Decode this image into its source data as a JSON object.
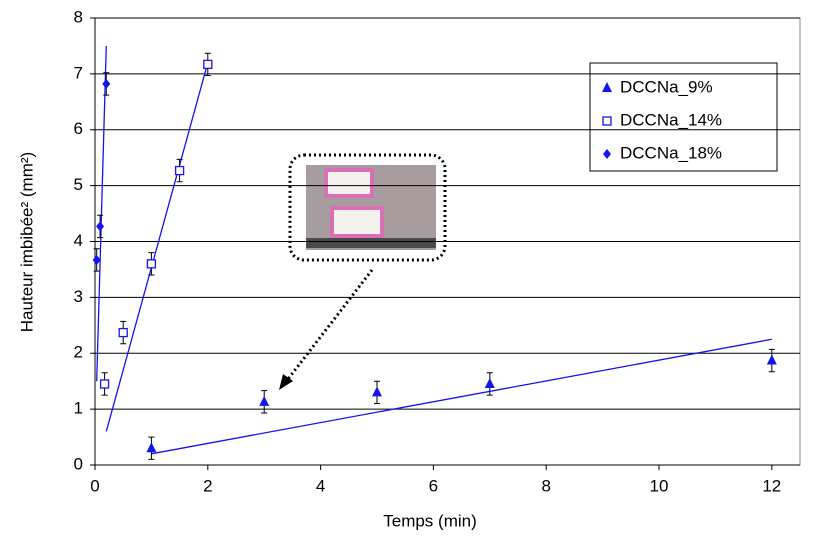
{
  "chart_data": {
    "type": "scatter",
    "x_label": "Temps (min)",
    "y_label": "Hauteur imbibée² (mm²)",
    "xlim": [
      0,
      12.5
    ],
    "xticks": [
      0,
      2,
      4,
      6,
      8,
      10,
      12
    ],
    "ylim": [
      0,
      8
    ],
    "yticks": [
      0,
      1,
      2,
      3,
      4,
      5,
      6,
      7,
      8
    ],
    "grid": true,
    "legend": "upper right",
    "series": [
      {
        "name": "DCCNa_9%",
        "color": "#1414f0",
        "marker": "triangle",
        "x": [
          1,
          3,
          5,
          7,
          12
        ],
        "values": [
          0.3,
          1.13,
          1.3,
          1.45,
          1.87
        ],
        "errors": [
          0.2,
          0.2,
          0.2,
          0.2,
          0.2
        ],
        "trend_x": [
          1,
          12
        ],
        "trend_y": [
          0.2,
          2.25
        ]
      },
      {
        "name": "DCCNa_14%",
        "color": "#1414f0",
        "marker": "square",
        "x": [
          0.17,
          0.5,
          1,
          1.5,
          2
        ],
        "values": [
          1.45,
          2.37,
          3.6,
          5.27,
          7.17
        ],
        "errors": [
          0.2,
          0.2,
          0.2,
          0.2,
          0.2
        ],
        "trend_x": [
          0.2,
          2
        ],
        "trend_y": [
          0.6,
          7.2
        ]
      },
      {
        "name": "DCCNa_18%",
        "color": "#1414f0",
        "marker": "diamond",
        "x": [
          0.03,
          0.09,
          0.2
        ],
        "values": [
          3.67,
          4.27,
          6.82
        ],
        "errors": [
          0.2,
          0.2,
          0.2
        ],
        "trend_x": [
          0.03,
          0.2
        ],
        "trend_y": [
          1.5,
          7.5
        ]
      }
    ]
  }
}
